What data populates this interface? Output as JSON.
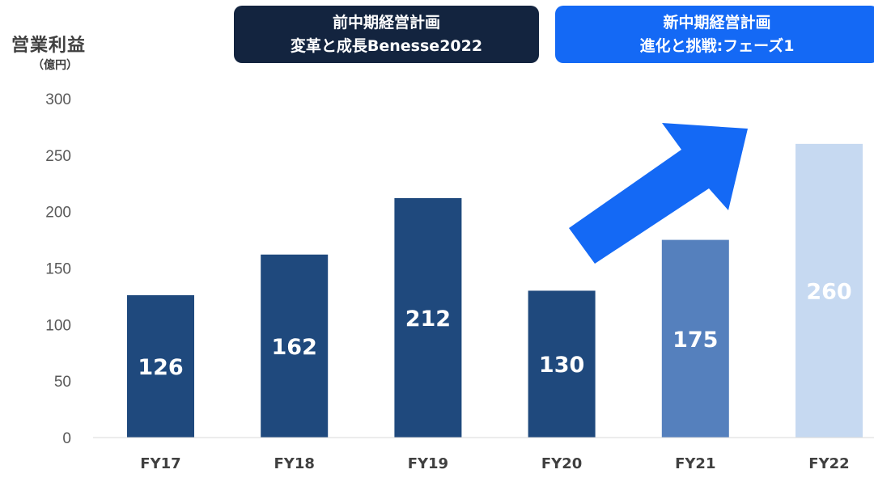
{
  "chart_data": {
    "type": "bar",
    "title": "",
    "ylabel": "営業利益",
    "yunit": "（億円）",
    "xlabel": "",
    "categories": [
      "FY17",
      "FY18",
      "FY19",
      "FY20",
      "FY21",
      "FY22"
    ],
    "values": [
      126,
      162,
      212,
      130,
      175,
      260
    ],
    "data_labels": [
      "126",
      "162",
      "212",
      "130",
      "175",
      "260"
    ],
    "bar_colors": [
      "#1f497d",
      "#1f497d",
      "#1f497d",
      "#1f497d",
      "#5580bd",
      "#c6d9f1"
    ],
    "ylim": [
      0,
      300
    ],
    "yticks": [
      0,
      50,
      100,
      150,
      200,
      250,
      300
    ],
    "grid": false,
    "legend": "none"
  },
  "plans": {
    "previous": {
      "line1": "前中期経営計画",
      "line2": "変革と成長Benesse2022",
      "color": "#13243f"
    },
    "new": {
      "line1": "新中期経営計画",
      "line2": "進化と挑戦:フェーズ1",
      "color": "#1469f5"
    }
  },
  "arrow": {
    "icon": "up-right-arrow-icon",
    "color": "#1469f5"
  }
}
